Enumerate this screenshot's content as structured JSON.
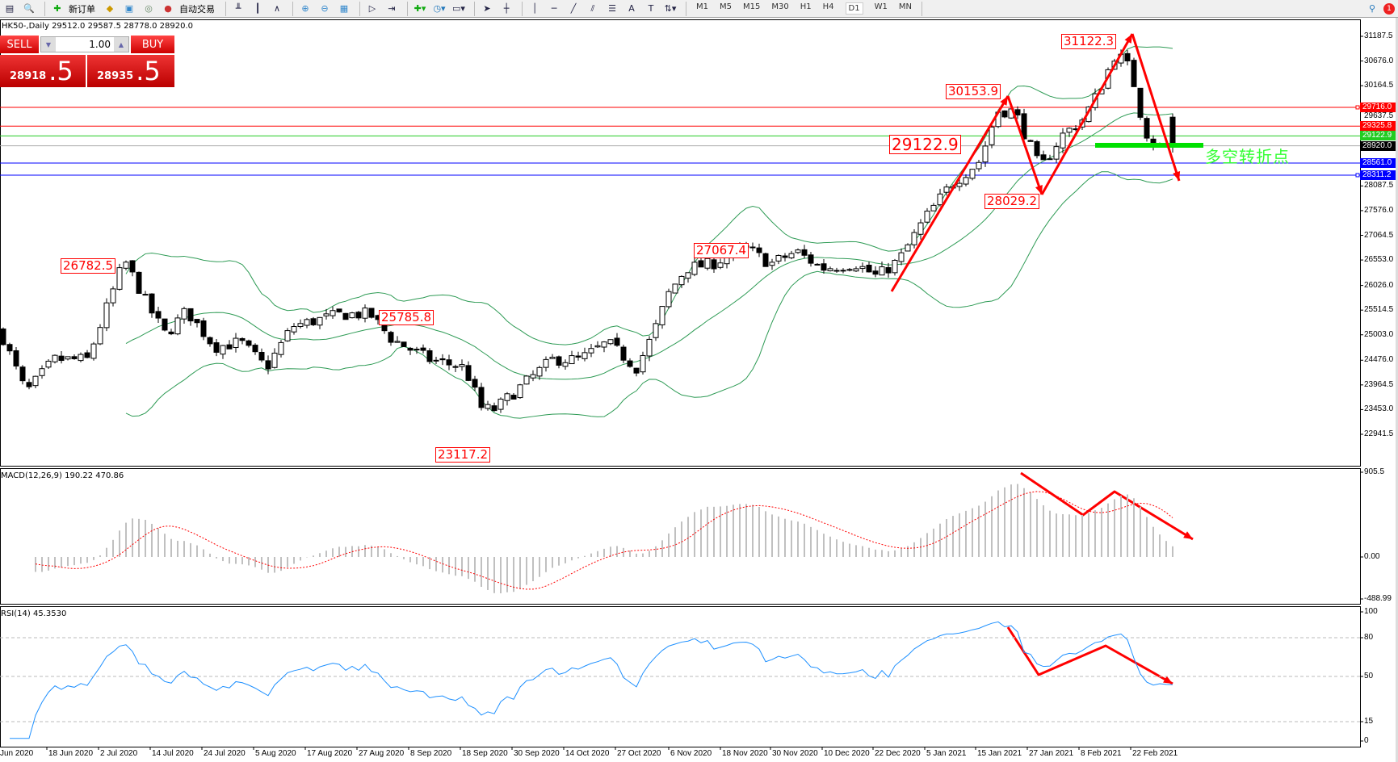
{
  "toolbar": {
    "new_order": "新订单",
    "auto_trading": "自动交易",
    "timeframes": [
      "M1",
      "M5",
      "M15",
      "M30",
      "H1",
      "H4",
      "D1",
      "W1",
      "MN"
    ],
    "active_timeframe": "D1",
    "notification_count": "1"
  },
  "chart": {
    "symbol_header": "HK50-,Daily  29512.0 29587.5 28778.0 28920.0"
  },
  "trade_panel": {
    "sell_label": "SELL",
    "buy_label": "BUY",
    "lot": "1.00",
    "sell_price_main": "28918",
    "sell_price_big": ".5",
    "buy_price_main": "28935",
    "buy_price_big": ".5"
  },
  "colors": {
    "bull_bear": "#000000",
    "bands": "#2e9b55",
    "annotation": "#ff0000",
    "pivot_line": "#00e000",
    "rsi": "#1e90ff",
    "macd_signal": "#ff0000",
    "macd_hist": "#c0c0c0"
  },
  "chart_data": [
    {
      "type": "candlestick",
      "symbol": "HK50-",
      "timeframe": "Daily",
      "ohlc_last": {
        "open": 29512.0,
        "high": 29587.5,
        "low": 28778.0,
        "close": 28920.0
      },
      "y_ticks": [
        "31187.5",
        "30676.0",
        "30164.5",
        "29637.5",
        "28087.5",
        "27576.0",
        "27064.5",
        "26553.0",
        "26026.0",
        "25514.5",
        "25003.0",
        "24476.0",
        "23964.5",
        "23453.0",
        "22941.5"
      ],
      "ylim": [
        22941.5,
        31187.5
      ],
      "x_ticks": [
        "Jun 2020",
        "18 Jun 2020",
        "2 Jul 2020",
        "14 Jul 2020",
        "24 Jul 2020",
        "5 Aug 2020",
        "17 Aug 2020",
        "27 Aug 2020",
        "8 Sep 2020",
        "18 Sep 2020",
        "30 Sep 2020",
        "14 Oct 2020",
        "27 Oct 2020",
        "6 Nov 2020",
        "18 Nov 2020",
        "30 Nov 2020",
        "10 Dec 2020",
        "22 Dec 2020",
        "5 Jan 2021",
        "15 Jan 2021",
        "27 Jan 2021",
        "8 Feb 2021",
        "22 Feb 2021"
      ],
      "close_waypoints": [
        [
          "2020-06-09",
          25090
        ],
        [
          "2020-06-14",
          23800
        ],
        [
          "2020-06-20",
          24490
        ],
        [
          "2020-06-29",
          24490
        ],
        [
          "2020-07-08",
          26550
        ],
        [
          "2020-07-14",
          25520
        ],
        [
          "2020-07-17",
          25000
        ],
        [
          "2020-07-21",
          25500
        ],
        [
          "2020-07-27",
          24750
        ],
        [
          "2020-08-02",
          24850
        ],
        [
          "2020-08-08",
          24320
        ],
        [
          "2020-08-14",
          25180
        ],
        [
          "2020-08-24",
          25430
        ],
        [
          "2020-08-30",
          25430
        ],
        [
          "2020-09-04",
          24920
        ],
        [
          "2020-09-12",
          24490
        ],
        [
          "2020-09-19",
          24320
        ],
        [
          "2020-09-23",
          23460
        ],
        [
          "2020-09-26",
          23460
        ],
        [
          "2020-10-03",
          23970
        ],
        [
          "2020-10-11",
          24490
        ],
        [
          "2020-10-18",
          24490
        ],
        [
          "2020-10-25",
          24840
        ],
        [
          "2020-10-31",
          24320
        ],
        [
          "2020-11-03",
          25000
        ],
        [
          "2020-11-06",
          25860
        ],
        [
          "2020-11-10",
          26380
        ],
        [
          "2020-11-16",
          26470
        ],
        [
          "2020-11-24",
          26810
        ],
        [
          "2020-11-30",
          26470
        ],
        [
          "2020-12-05",
          26730
        ],
        [
          "2020-12-10",
          26380
        ],
        [
          "2020-12-18",
          26470
        ],
        [
          "2020-12-23",
          26210
        ],
        [
          "2020-12-29",
          26550
        ],
        [
          "2021-01-05",
          27410
        ],
        [
          "2021-01-10",
          28100
        ],
        [
          "2021-01-16",
          28610
        ],
        [
          "2021-01-20",
          29640
        ],
        [
          "2021-01-24",
          29640
        ],
        [
          "2021-01-30",
          28440
        ],
        [
          "2021-02-04",
          29130
        ],
        [
          "2021-02-09",
          29470
        ],
        [
          "2021-02-13",
          29990
        ],
        [
          "2021-02-18",
          30850
        ],
        [
          "2021-02-22",
          30500
        ],
        [
          "2021-02-25",
          29480
        ],
        [
          "2021-02-27",
          29040
        ],
        [
          "2021-03-01",
          28920
        ]
      ],
      "horizontal_lines": [
        {
          "price": "29716.0",
          "color": "#ff0000"
        },
        {
          "price": "29325.8",
          "color": "#ff0000"
        },
        {
          "price": "29122.9",
          "color": "#22cc22"
        },
        {
          "price": "28920.0",
          "color": "#000000"
        },
        {
          "price": "28561.0",
          "color": "#0000ff"
        },
        {
          "price": "28311.2",
          "color": "#0000ff"
        }
      ],
      "annotations": [
        "26782.5",
        "25785.8",
        "23117.2",
        "27067.4",
        "30153.9",
        "31122.3",
        "28029.2",
        "29122.9"
      ],
      "pivot_text": "多空转折点",
      "indicators": [
        "Bollinger Bands"
      ]
    },
    {
      "type": "bar+line",
      "title": "MACD(12,26,9) 190.22 470.86",
      "y_ticks": [
        "905.5",
        "0.00",
        "-488.99"
      ]
    },
    {
      "type": "line",
      "title": "RSI(14) 45.3530",
      "y_ticks": [
        "100",
        "80",
        "50",
        "15",
        "0"
      ],
      "levels": [
        80,
        50,
        15
      ]
    }
  ]
}
